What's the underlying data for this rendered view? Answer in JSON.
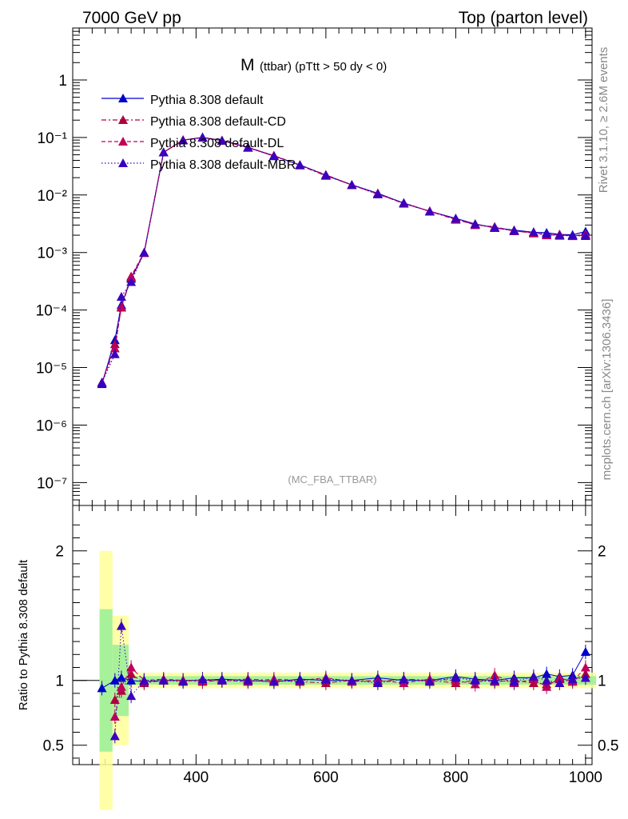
{
  "header": {
    "energy": "7000 GeV pp",
    "process": "Top (parton level)",
    "rivet": "Rivet 3.1.10, ≥ 2.6M events",
    "source": "mcplots.cern.ch [arXiv:1306.3436]",
    "analysis": "(MC_FBA_TTBAR)"
  },
  "chart_data": {
    "type": "line",
    "title": "M",
    "title_sub": "(ttbar) (pTtt > 50 dy < 0)",
    "xlim": [
      210,
      1010
    ],
    "top_panel": {
      "yscale": "log",
      "ylim": [
        4e-08,
        8
      ],
      "ytick_labels": [
        "1",
        "10⁻¹",
        "10⁻²",
        "10⁻³",
        "10⁻⁴",
        "10⁻⁵",
        "10⁻⁶",
        "10⁻⁷"
      ],
      "legend_position": "upper-left"
    },
    "ratio_panel": {
      "ylabel": "Ratio to Pythia 8.308 default",
      "ylim": [
        0.35,
        2.35
      ],
      "ytick_labels": [
        "0.5",
        "1",
        "2"
      ]
    },
    "xtick_labels": [
      "400",
      "600",
      "800",
      "1000"
    ],
    "series": [
      {
        "name": "Pythia 8.308 default",
        "color": "#0000cc",
        "dash": "solid",
        "ratio": [
          0.94,
          1.0,
          1.02,
          1.0,
          0.99,
          1.0,
          1.0,
          1.0,
          1.01,
          1.0,
          0.99,
          1.01,
          1.0,
          1.0,
          1.02,
          1.0,
          1.0,
          1.03,
          1.01,
          1.0,
          1.02,
          1.02,
          1.05,
          1.03,
          1.04,
          1.22
        ]
      },
      {
        "name": "Pythia 8.308 default-CD",
        "color": "#b0003c",
        "dash": "dashdot",
        "ratio": [
          null,
          0.85,
          0.92,
          1.05,
          0.98,
          1.0,
          1.0,
          0.99,
          1.0,
          1.01,
          1.0,
          0.99,
          0.98,
          1.0,
          0.99,
          1.01,
          1.0,
          0.98,
          1.0,
          0.99,
          1.0,
          0.98,
          0.97,
          1.01,
          1.0,
          1.05
        ]
      },
      {
        "name": "Pythia 8.308 default-DL",
        "color": "#c0005a",
        "dash": "dashed",
        "ratio": [
          null,
          0.72,
          0.95,
          1.1,
          1.0,
          1.01,
          1.0,
          1.0,
          1.0,
          0.99,
          1.01,
          1.0,
          1.02,
          0.99,
          1.0,
          0.98,
          1.01,
          1.0,
          0.97,
          1.04,
          0.98,
          1.01,
          0.95,
          1.02,
          0.99,
          1.1
        ]
      },
      {
        "name": "Pythia 8.308 default-MBR",
        "color": "#3a00bf",
        "dash": "dotted",
        "ratio": [
          null,
          0.57,
          1.42,
          0.88,
          1.0,
          1.0,
          0.99,
          1.01,
          1.0,
          1.0,
          0.99,
          1.0,
          1.01,
          1.0,
          0.98,
          1.01,
          0.99,
          1.02,
          1.0,
          1.0,
          0.99,
          1.03,
          1.0,
          0.98,
          1.01,
          1.02
        ]
      }
    ],
    "x": [
      255,
      275,
      285,
      300,
      320,
      350,
      380,
      410,
      440,
      480,
      520,
      560,
      600,
      640,
      680,
      720,
      760,
      800,
      830,
      860,
      890,
      920,
      940,
      960,
      980,
      1000
    ],
    "y_reference": [
      5.5e-06,
      3e-05,
      0.00012,
      0.00035,
      0.001,
      0.055,
      0.09,
      0.1,
      0.088,
      0.067,
      0.048,
      0.033,
      0.022,
      0.015,
      0.0105,
      0.0072,
      0.0052,
      0.0038,
      0.0031,
      0.0027,
      0.0024,
      0.0022,
      0.0021,
      0.002,
      0.00195,
      0.0019
    ]
  }
}
